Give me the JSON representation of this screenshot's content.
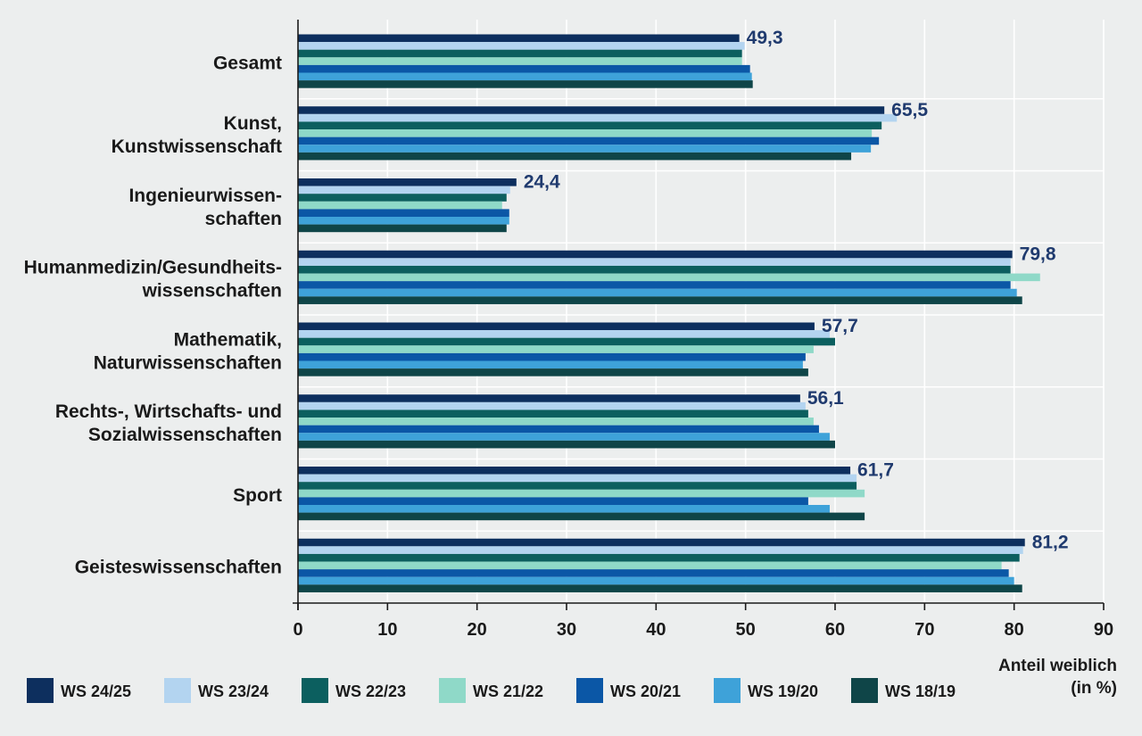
{
  "chart_data": {
    "type": "bar",
    "orientation": "horizontal",
    "title": "",
    "xlabel": [
      "Anteil weiblich",
      "(in %)"
    ],
    "xlim": [
      0,
      90
    ],
    "xticks": [
      0,
      10,
      20,
      30,
      40,
      50,
      60,
      70,
      80,
      90
    ],
    "grid": true,
    "legend_position": "bottom",
    "categories": [
      [
        "Gesamt"
      ],
      [
        "Kunst,",
        "Kunstwissenschaft"
      ],
      [
        "Ingenieurwissen-",
        "schaften"
      ],
      [
        "Humanmedizin/Gesundheits-",
        "wissenschaften"
      ],
      [
        "Mathematik,",
        "Naturwissenschaften"
      ],
      [
        "Rechts-, Wirtschafts- und",
        "Sozialwissenschaften"
      ],
      [
        "Sport"
      ],
      [
        "Geisteswissenschaften"
      ]
    ],
    "value_labels": [
      "49,3",
      "65,5",
      "24,4",
      "79,8",
      "57,7",
      "56,1",
      "61,7",
      "81,2"
    ],
    "series": [
      {
        "name": "WS 24/25",
        "color": "#0d2f5e",
        "values": [
          49.3,
          65.5,
          24.4,
          79.8,
          57.7,
          56.1,
          61.7,
          81.2
        ]
      },
      {
        "name": "WS 23/24",
        "color": "#b3d4f0",
        "values": [
          49.9,
          66.9,
          23.7,
          79.6,
          59.4,
          56.7,
          62.4,
          81.0
        ]
      },
      {
        "name": "WS 22/23",
        "color": "#0c5f5f",
        "values": [
          49.6,
          65.2,
          23.3,
          79.6,
          60.0,
          57.0,
          62.4,
          80.6
        ]
      },
      {
        "name": "WS 21/22",
        "color": "#8fd9c8",
        "values": [
          49.6,
          64.1,
          22.8,
          82.9,
          57.6,
          57.6,
          63.3,
          78.6
        ]
      },
      {
        "name": "WS 20/21",
        "color": "#0b57a6",
        "values": [
          50.5,
          64.9,
          23.6,
          79.6,
          56.7,
          58.2,
          57.0,
          79.4
        ]
      },
      {
        "name": "WS 19/20",
        "color": "#3ea2d9",
        "values": [
          50.7,
          64.0,
          23.6,
          80.3,
          56.4,
          59.4,
          59.4,
          80.0
        ]
      },
      {
        "name": "WS 18/19",
        "color": "#0f4548",
        "values": [
          50.8,
          61.8,
          23.3,
          80.9,
          57.0,
          60.0,
          63.3,
          80.9
        ]
      }
    ]
  }
}
